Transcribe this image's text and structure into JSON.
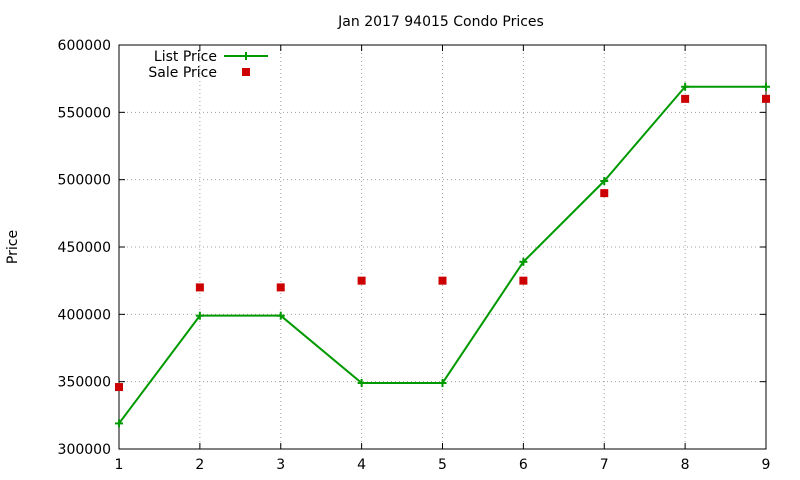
{
  "chart_data": {
    "type": "line",
    "title": "Jan 2017 94015 Condo Prices",
    "xlabel": "",
    "ylabel": "Price",
    "x": [
      1,
      2,
      3,
      4,
      5,
      6,
      7,
      8,
      9
    ],
    "xlim": [
      1,
      9
    ],
    "ylim": [
      300000,
      600000
    ],
    "yticks": [
      "300000",
      "350000",
      "400000",
      "450000",
      "500000",
      "550000",
      "600000"
    ],
    "xticks": [
      "1",
      "2",
      "3",
      "4",
      "5",
      "6",
      "7",
      "8",
      "9"
    ],
    "grid": true,
    "legend_position": "top-left",
    "series": [
      {
        "name": "List Price",
        "style": "line-with-plus-markers",
        "color": "#009900",
        "values": [
          319000,
          399000,
          399000,
          349000,
          349000,
          439000,
          499000,
          569000,
          569000
        ]
      },
      {
        "name": "Sale Price",
        "style": "square-markers",
        "color": "#cc0000",
        "values": [
          346000,
          420000,
          420000,
          425000,
          425000,
          425000,
          490000,
          560000,
          560000
        ]
      }
    ]
  }
}
